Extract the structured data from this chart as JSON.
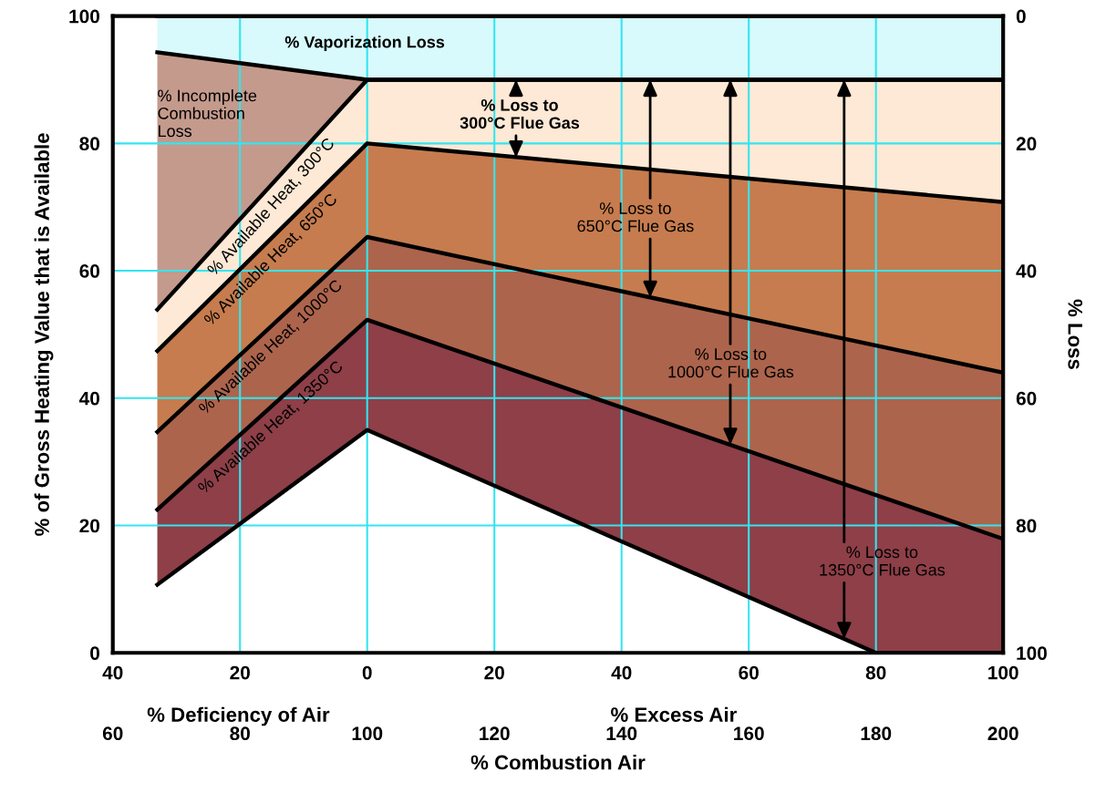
{
  "chart_data": {
    "type": "area",
    "xlabel": "% Combustion Air",
    "x2label": "% Excess Air",
    "ylabel": "% of Gross Heating Value that is Available",
    "y2label": "% Loss",
    "xlim": [
      60,
      200
    ],
    "xticks": [
      60,
      80,
      100,
      120,
      140,
      160,
      180,
      200
    ],
    "x2lim": [
      -40,
      100
    ],
    "x2ticks": [
      {
        "value": -40,
        "label": "40"
      },
      {
        "value": -20,
        "label": "20"
      },
      0,
      20,
      40,
      60,
      80,
      100
    ],
    "ylim": [
      0,
      100
    ],
    "yticks": [
      0,
      20,
      40,
      60,
      80,
      100
    ],
    "y2lim": [
      100,
      0
    ],
    "y2ticks": [
      0,
      20,
      40,
      60,
      80,
      100
    ],
    "grid": true,
    "series": [
      {
        "color": "#d8fafc",
        "x": [
          67,
          100,
          200
        ],
        "values": [
          100,
          100,
          100
        ]
      },
      {
        "color": "#c49a8c",
        "x": [
          67,
          100,
          200
        ],
        "values": [
          94.3,
          90,
          90
        ]
      },
      {
        "name": "% Available Heat, 300°C",
        "color": "#fde9d5",
        "x": [
          67,
          100,
          200
        ],
        "values": [
          53.9,
          90,
          90
        ]
      },
      {
        "name": "% Available Heat, 650°C",
        "color": "#c67c4e",
        "x": [
          67,
          100,
          200
        ],
        "values": [
          47.4,
          80,
          70.8
        ]
      },
      {
        "name": "% Available Heat, 1000°C",
        "color": "#ad644c",
        "x": [
          67,
          100,
          200
        ],
        "values": [
          34.7,
          65.3,
          44.0
        ]
      },
      {
        "name": "% Available Heat, 1350°C",
        "color": "#8e3f48",
        "x": [
          67,
          100,
          200
        ],
        "values": [
          22.5,
          52.3,
          17.9
        ]
      },
      {
        "type": "line",
        "color": "#000000",
        "x": [
          67,
          100,
          180,
          200
        ],
        "values": [
          10.7,
          35.0,
          0,
          0
        ]
      }
    ],
    "annotations": [
      "% Vaporization Loss",
      "% Incomplete\nCombustion\nLoss",
      {
        "text": "% Loss to\n300°C Flue Gas",
        "x": 123.4,
        "y": 77.8
      },
      {
        "text": "% Loss to\n650°C Flue Gas",
        "x": 144.5,
        "y": 55.8
      },
      {
        "text": "% Loss to\n1000°C Flue Gas",
        "x": 157.1,
        "y": 32.7
      },
      {
        "text": "% Loss to\n1350°C Flue Gas",
        "x": 175.0,
        "y": 2.2
      },
      "% Deficiency of Air"
    ]
  }
}
